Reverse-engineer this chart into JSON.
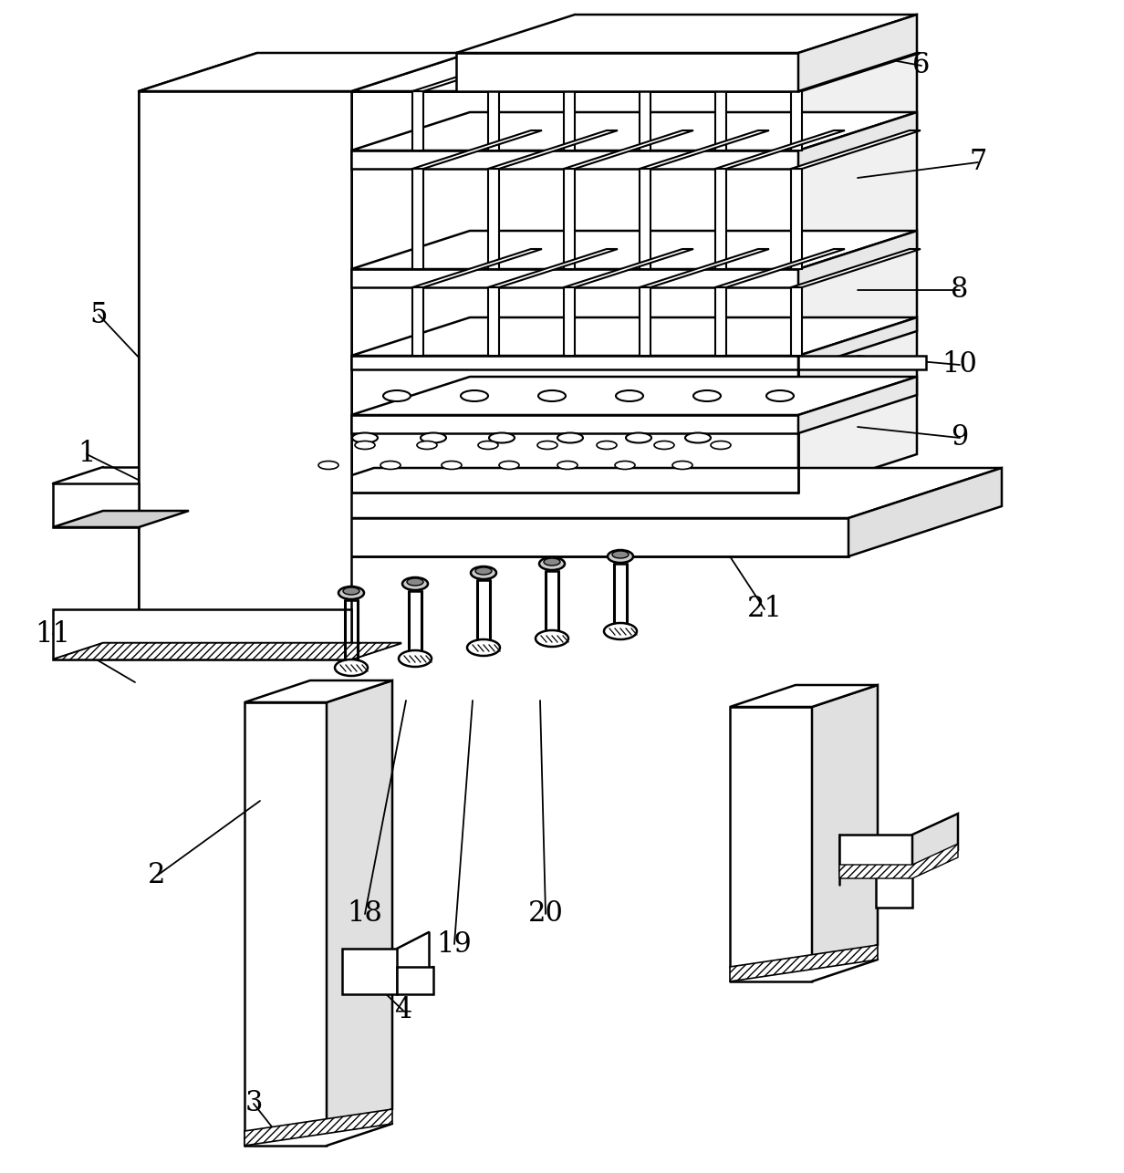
{
  "bg_color": "#ffffff",
  "line_color": "#000000",
  "figsize": [
    12.32,
    12.86
  ],
  "dpi": 100,
  "labels": [
    [
      "1",
      95,
      498,
      220,
      560
    ],
    [
      "2",
      172,
      960,
      285,
      878
    ],
    [
      "3",
      278,
      1210,
      308,
      1248
    ],
    [
      "4",
      442,
      1108,
      418,
      1085
    ],
    [
      "5",
      108,
      345,
      155,
      395
    ],
    [
      "6",
      1010,
      72,
      850,
      42
    ],
    [
      "7",
      1072,
      178,
      940,
      195
    ],
    [
      "8",
      1052,
      318,
      940,
      318
    ],
    [
      "9",
      1052,
      480,
      940,
      468
    ],
    [
      "10",
      1052,
      400,
      940,
      390
    ],
    [
      "11",
      58,
      695,
      148,
      748
    ],
    [
      "18",
      400,
      1002,
      445,
      768
    ],
    [
      "19",
      498,
      1035,
      518,
      768
    ],
    [
      "20",
      598,
      1002,
      592,
      768
    ],
    [
      "21",
      838,
      668,
      800,
      610
    ]
  ]
}
